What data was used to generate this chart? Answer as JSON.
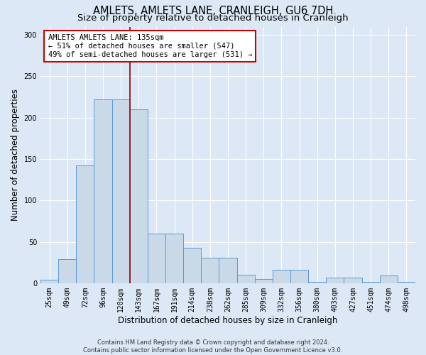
{
  "title_line1": "AMLETS, AMLETS LANE, CRANLEIGH, GU6 7DH",
  "title_line2": "Size of property relative to detached houses in Cranleigh",
  "xlabel": "Distribution of detached houses by size in Cranleigh",
  "ylabel": "Number of detached properties",
  "categories": [
    "25sqm",
    "49sqm",
    "72sqm",
    "96sqm",
    "120sqm",
    "143sqm",
    "167sqm",
    "191sqm",
    "214sqm",
    "238sqm",
    "262sqm",
    "285sqm",
    "309sqm",
    "332sqm",
    "356sqm",
    "380sqm",
    "403sqm",
    "427sqm",
    "451sqm",
    "474sqm",
    "498sqm"
  ],
  "values": [
    4,
    29,
    142,
    222,
    222,
    210,
    60,
    60,
    43,
    31,
    31,
    10,
    5,
    16,
    16,
    2,
    7,
    7,
    2,
    9,
    2
  ],
  "bar_color": "#c9d9e8",
  "bar_edge_color": "#5b9bd5",
  "fig_bg_color": "#dce8f5",
  "ax_bg_color": "#dce8f5",
  "vline_index": 4.5,
  "vline_color": "#990000",
  "annotation_text": "AMLETS AMLETS LANE: 135sqm\n← 51% of detached houses are smaller (547)\n49% of semi-detached houses are larger (531) →",
  "annotation_box_color": "#ffffff",
  "annotation_box_edge": "#cc0000",
  "ylim": [
    0,
    310
  ],
  "yticks": [
    0,
    50,
    100,
    150,
    200,
    250,
    300
  ],
  "footer_line1": "Contains HM Land Registry data © Crown copyright and database right 2024.",
  "footer_line2": "Contains public sector information licensed under the Open Government Licence v3.0.",
  "grid_color": "#ffffff",
  "title_fontsize": 10.5,
  "subtitle_fontsize": 9.5,
  "tick_fontsize": 7,
  "ylabel_fontsize": 8.5,
  "xlabel_fontsize": 8.5,
  "footer_fontsize": 6,
  "annot_fontsize": 7.5
}
